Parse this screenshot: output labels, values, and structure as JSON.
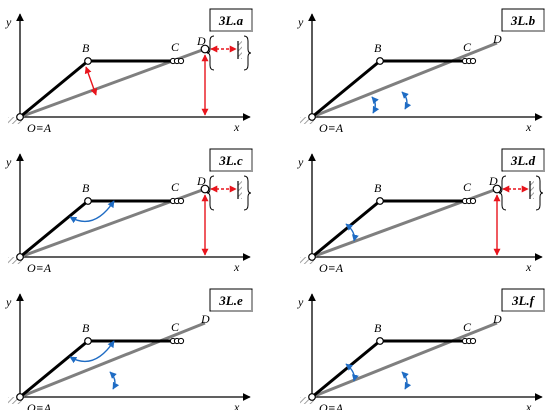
{
  "colors": {
    "link_dark": "#000000",
    "link_gray": "#7f7f7f",
    "constraint_red": "#e8141c",
    "constraint_blue": "#1f6cc4",
    "hatch": "#777777"
  },
  "axis_labels": {
    "x": "x",
    "y": "y"
  },
  "point_labels": {
    "origin": "O≡A",
    "B": "B",
    "C": "C",
    "D": "D"
  },
  "panels": [
    {
      "label": "3L.a",
      "features": [
        "red-BD-distance",
        "red-D-height",
        "red-D-wall-distance",
        "wall"
      ]
    },
    {
      "label": "3L.b",
      "features": [
        "blue-angle-A"
      ]
    },
    {
      "label": "3L.c",
      "features": [
        "blue-angle-B",
        "red-D-height",
        "red-D-wall-distance",
        "wall"
      ]
    },
    {
      "label": "3L.d",
      "features": [
        "blue-angle-AB",
        "red-D-height",
        "red-D-wall-distance",
        "wall"
      ]
    },
    {
      "label": "3L.e",
      "features": [
        "blue-angle-A",
        "blue-angle-B"
      ]
    },
    {
      "label": "3L.f",
      "features": [
        "blue-angle-AB",
        "blue-angle-A"
      ]
    }
  ]
}
